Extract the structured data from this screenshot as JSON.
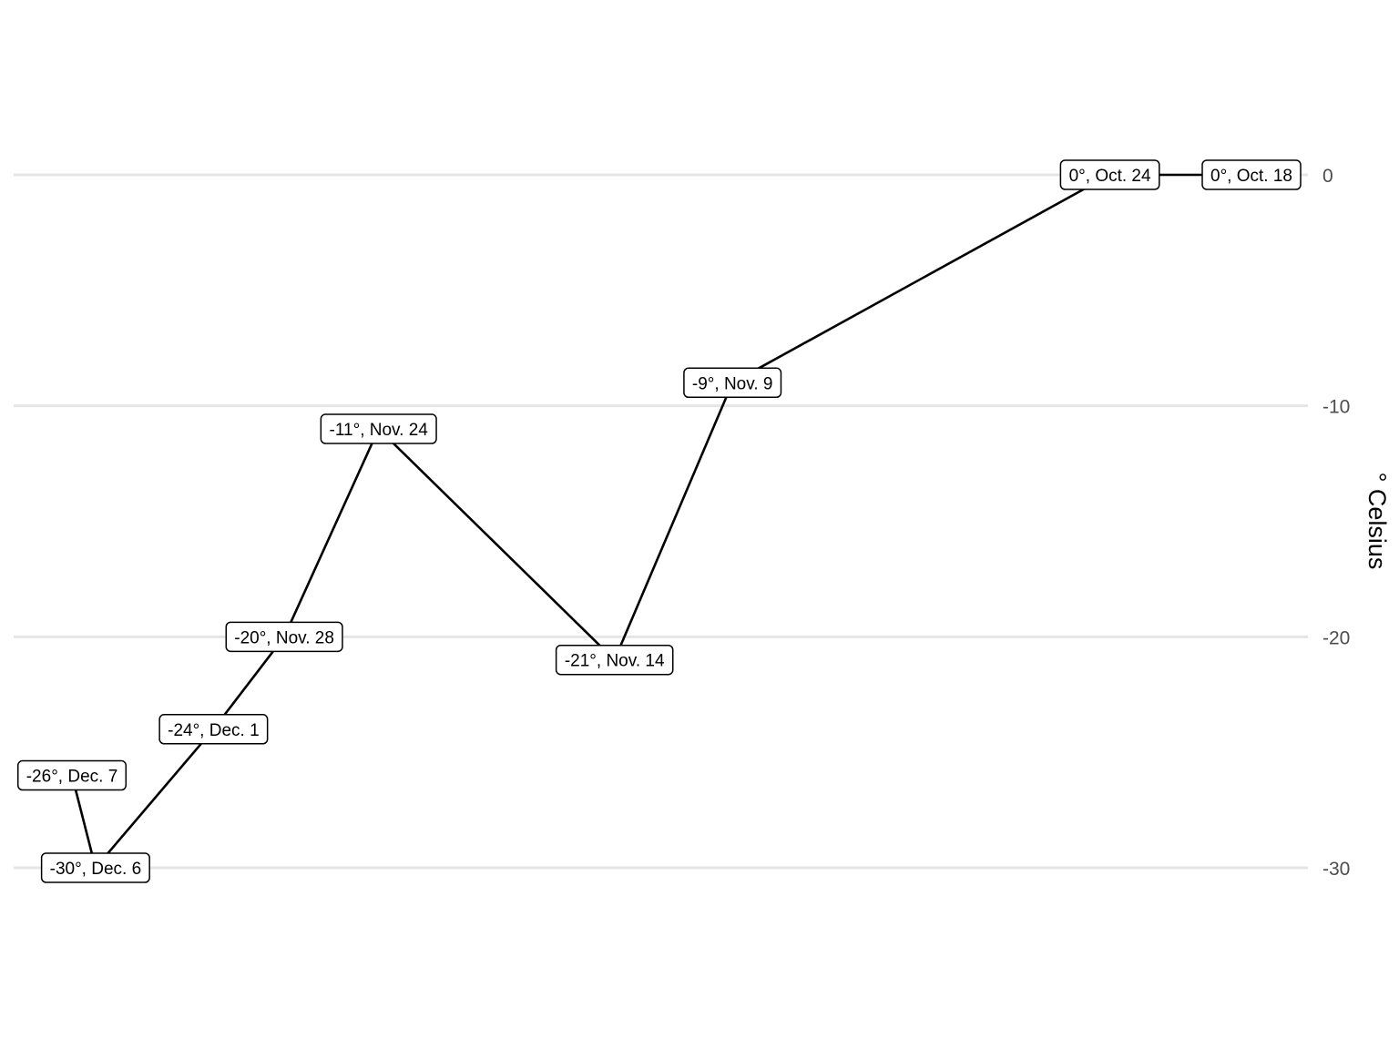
{
  "chart_data": {
    "type": "line",
    "title": "",
    "xlabel": "",
    "ylabel": "° Celsius",
    "ylim": [
      -30,
      0
    ],
    "x_axis_reversed": true,
    "x_ticks_shown": false,
    "y_axis_position": "right",
    "y_ticks": [
      0,
      -10,
      -20,
      -30
    ],
    "grid": "horizontal major lines only",
    "legend": "none",
    "color": "#000000",
    "points": [
      {
        "date": "Oct. 18",
        "value": 0,
        "label": "0°, Oct. 18"
      },
      {
        "date": "Oct. 24",
        "value": 0,
        "label": "0°, Oct. 24"
      },
      {
        "date": "Nov. 9",
        "value": -9,
        "label": "-9°, Nov. 9"
      },
      {
        "date": "Nov. 14",
        "value": -21,
        "label": "-21°, Nov. 14"
      },
      {
        "date": "Nov. 24",
        "value": -11,
        "label": "-11°, Nov. 24"
      },
      {
        "date": "Nov. 28",
        "value": -20,
        "label": "-20°, Nov. 28"
      },
      {
        "date": "Dec. 1",
        "value": -24,
        "label": "-24°, Dec. 1"
      },
      {
        "date": "Dec. 6",
        "value": -30,
        "label": "-30°, Dec. 6"
      },
      {
        "date": "Dec. 7",
        "value": -26,
        "label": "-26°, Dec. 7"
      }
    ]
  }
}
